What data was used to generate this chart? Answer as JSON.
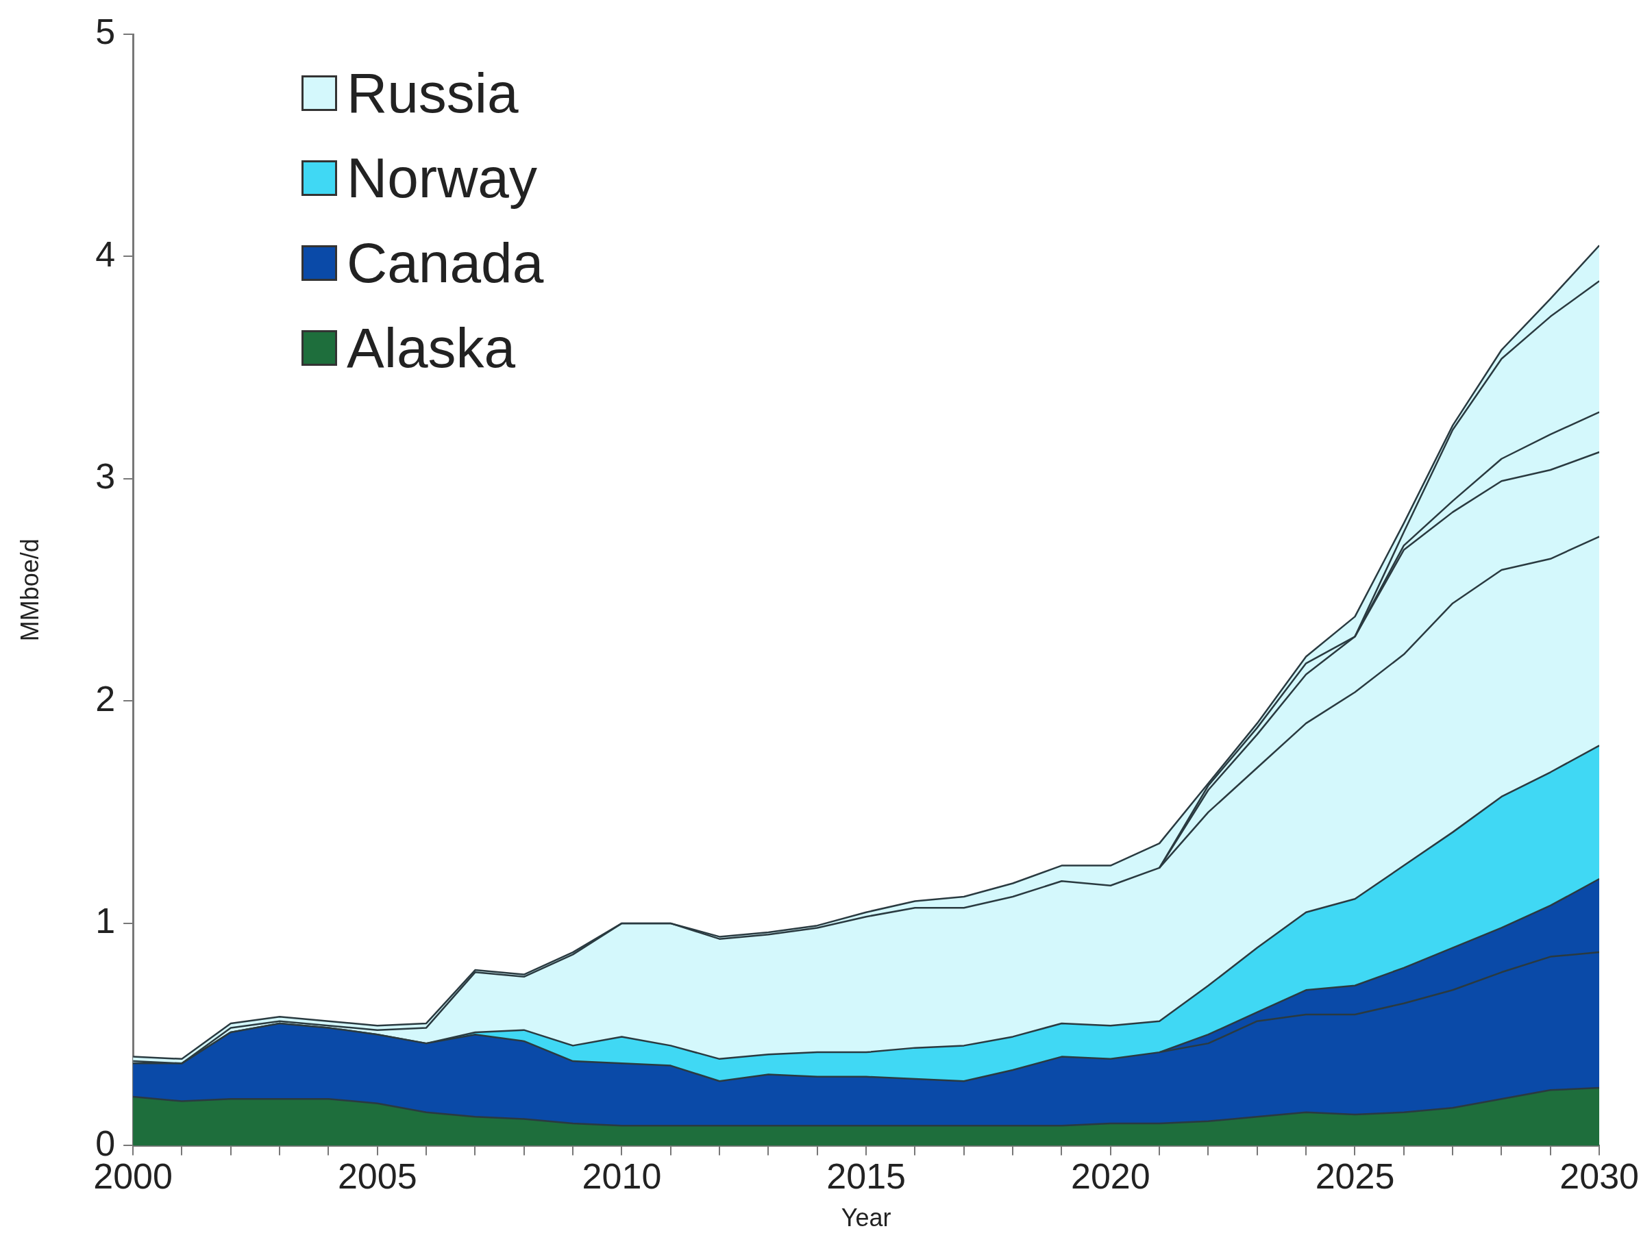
{
  "chart_data": {
    "type": "area",
    "stacked": true,
    "xlabel": "Year",
    "ylabel": "MMboe/d",
    "x": [
      2000,
      2001,
      2002,
      2003,
      2004,
      2005,
      2006,
      2007,
      2008,
      2009,
      2010,
      2011,
      2012,
      2013,
      2014,
      2015,
      2016,
      2017,
      2018,
      2019,
      2020,
      2021,
      2022,
      2023,
      2024,
      2025,
      2026,
      2027,
      2028,
      2029,
      2030
    ],
    "series": [
      {
        "name": "Alaska",
        "color": "#1e6e3c",
        "values": [
          0.22,
          0.2,
          0.21,
          0.21,
          0.21,
          0.19,
          0.15,
          0.13,
          0.12,
          0.1,
          0.09,
          0.09,
          0.09,
          0.09,
          0.09,
          0.09,
          0.09,
          0.09,
          0.09,
          0.09,
          0.1,
          0.1,
          0.11,
          0.13,
          0.15,
          0.14,
          0.15,
          0.17,
          0.21,
          0.25,
          0.26
        ]
      },
      {
        "name": "Canada",
        "color": "#0a4aa8",
        "values": [
          0.15,
          0.17,
          0.3,
          0.34,
          0.32,
          0.31,
          0.31,
          0.37,
          0.35,
          0.28,
          0.28,
          0.27,
          0.2,
          0.23,
          0.22,
          0.22,
          0.21,
          0.2,
          0.25,
          0.31,
          0.29,
          0.32,
          0.39,
          0.47,
          0.55,
          0.58,
          0.65,
          0.72,
          0.77,
          0.83,
          0.94
        ]
      },
      {
        "name": "Norway",
        "color": "#40d8f4",
        "values": [
          0,
          0,
          0,
          0,
          0,
          0,
          0,
          0.01,
          0.05,
          0.07,
          0.12,
          0.09,
          0.1,
          0.09,
          0.11,
          0.11,
          0.14,
          0.16,
          0.15,
          0.15,
          0.15,
          0.14,
          0.22,
          0.29,
          0.35,
          0.39,
          0.46,
          0.52,
          0.59,
          0.6,
          0.6
        ]
      },
      {
        "name": "Russia",
        "color": "#d4f8fc",
        "values": [
          0.03,
          0.02,
          0.04,
          0.03,
          0.03,
          0.04,
          0.09,
          0.28,
          0.25,
          0.42,
          0.51,
          0.55,
          0.55,
          0.55,
          0.57,
          0.63,
          0.66,
          0.67,
          0.69,
          0.71,
          0.72,
          0.8,
          0.91,
          1.01,
          1.15,
          1.27,
          1.54,
          1.83,
          2.01,
          2.13,
          2.25
        ]
      },
      {
        "type": "line",
        "color": "#2a3a40",
        "values": [
          null,
          null,
          null,
          null,
          null,
          null,
          null,
          null,
          null,
          null,
          null,
          null,
          null,
          null,
          null,
          null,
          null,
          null,
          null,
          null,
          null,
          0.42,
          0.46,
          0.56,
          0.59,
          0.59,
          0.64,
          0.7,
          0.78,
          0.85,
          0.87
        ]
      },
      {
        "type": "line",
        "color": "#2a3a40",
        "values": [
          0.38,
          0.37,
          0.53,
          0.56,
          0.54,
          0.52,
          0.53,
          0.78,
          0.76,
          0.86,
          1.0,
          1.0,
          0.93,
          0.95,
          0.98,
          1.03,
          1.07,
          1.07,
          1.12,
          1.19,
          1.17,
          1.25,
          1.5,
          1.7,
          1.9,
          2.04,
          2.21,
          2.44,
          2.59,
          2.64,
          2.74
        ]
      },
      {
        "type": "line",
        "color": "#2a3a40",
        "values": [
          null,
          null,
          null,
          null,
          null,
          null,
          null,
          null,
          null,
          null,
          null,
          null,
          null,
          null,
          null,
          null,
          null,
          null,
          null,
          null,
          null,
          1.25,
          1.6,
          1.85,
          2.12,
          2.29,
          2.68,
          2.85,
          2.99,
          3.04,
          3.12
        ]
      },
      {
        "type": "line",
        "color": "#2a3a40",
        "values": [
          null,
          null,
          null,
          null,
          null,
          null,
          null,
          null,
          null,
          null,
          null,
          null,
          null,
          null,
          null,
          null,
          null,
          null,
          null,
          null,
          null,
          null,
          null,
          null,
          null,
          2.29,
          2.7,
          2.9,
          3.09,
          3.2,
          3.3
        ]
      },
      {
        "type": "line",
        "color": "#2a3a40",
        "values": [
          null,
          null,
          null,
          null,
          null,
          null,
          null,
          null,
          null,
          null,
          null,
          null,
          null,
          null,
          null,
          null,
          null,
          null,
          null,
          null,
          null,
          1.25,
          1.62,
          1.88,
          2.17,
          2.29,
          2.76,
          3.22,
          3.54,
          3.73,
          3.89
        ]
      }
    ],
    "xlim": [
      2000,
      2030
    ],
    "xticks": [
      2000,
      {
        "value": 2001,
        "label": null
      },
      {
        "value": 2002,
        "label": null
      },
      {
        "value": 2003,
        "label": null
      },
      {
        "value": 2004,
        "label": null
      },
      2005,
      {
        "value": 2006,
        "label": null
      },
      {
        "value": 2007,
        "label": null
      },
      {
        "value": 2008,
        "label": null
      },
      {
        "value": 2009,
        "label": null
      },
      2010,
      {
        "value": 2011,
        "label": null
      },
      {
        "value": 2012,
        "label": null
      },
      {
        "value": 2013,
        "label": null
      },
      {
        "value": 2014,
        "label": null
      },
      2015,
      {
        "value": 2016,
        "label": null
      },
      {
        "value": 2017,
        "label": null
      },
      {
        "value": 2018,
        "label": null
      },
      {
        "value": 2019,
        "label": null
      },
      2020,
      {
        "value": 2021,
        "label": null
      },
      {
        "value": 2022,
        "label": null
      },
      {
        "value": 2023,
        "label": null
      },
      {
        "value": 2024,
        "label": null
      },
      2025,
      {
        "value": 2026,
        "label": null
      },
      {
        "value": 2027,
        "label": null
      },
      {
        "value": 2028,
        "label": null
      },
      {
        "value": 2029,
        "label": null
      },
      2030
    ],
    "ylim": [
      0,
      5
    ],
    "yticks": [
      0,
      1,
      2,
      3,
      4,
      5
    ],
    "grid": false,
    "legend": "top left",
    "marker": "none",
    "line_style": "solid"
  }
}
